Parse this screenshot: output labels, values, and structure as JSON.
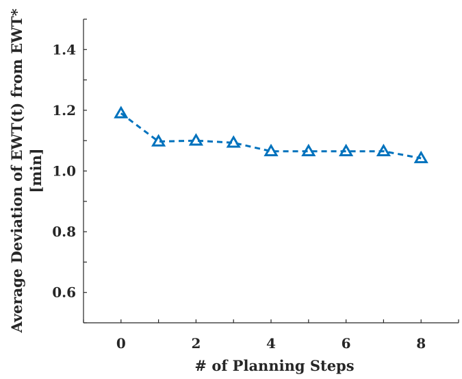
{
  "chart_data": {
    "type": "line",
    "title": "",
    "xlabel": "# of Planning Steps",
    "ylabel_lines": [
      "Average Deviation of EWT(t) from EWT*",
      "[min]"
    ],
    "xlim": [
      -1,
      9
    ],
    "ylim": [
      0.5,
      1.5
    ],
    "xticks": [
      0,
      2,
      4,
      6,
      8
    ],
    "yticks": [
      0.6,
      0.8,
      1.0,
      1.2,
      1.4
    ],
    "ytick_labels": [
      "0.6",
      "0.8",
      "1.0",
      "1.2",
      "1.4"
    ],
    "grid": false,
    "legend": false,
    "series": [
      {
        "x": [
          0,
          1,
          2,
          3,
          4,
          5,
          6,
          7,
          8
        ],
        "y": [
          1.19,
          1.097,
          1.1,
          1.093,
          1.065,
          1.065,
          1.065,
          1.065,
          1.042
        ],
        "color": "#0072BD",
        "line_style": "dashed",
        "marker": "triangle"
      }
    ]
  }
}
